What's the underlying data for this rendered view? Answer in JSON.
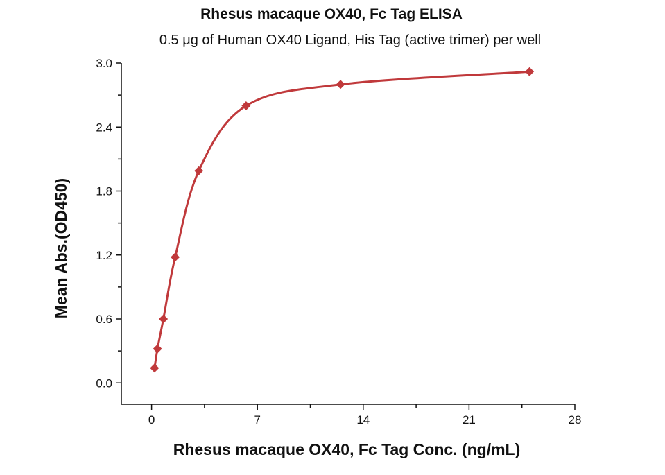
{
  "colors": {
    "series": "#c0393b",
    "axis": "#111111"
  },
  "chart_data": {
    "type": "scatter",
    "title": "Rhesus macaque OX40, Fc Tag ELISA",
    "subtitle": "0.5 μg of Human OX40 Ligand, His Tag (active trimer) per well",
    "xlabel": "Rhesus macaque OX40, Fc Tag Conc. (ng/mL)",
    "ylabel": "Mean Abs.(OD450)",
    "xlim": [
      -2,
      28
    ],
    "ylim": [
      -0.2,
      3.0
    ],
    "xticks": [
      0,
      7,
      14,
      21,
      28
    ],
    "xtick_labels": [
      "0",
      "7",
      "14",
      "21",
      "28"
    ],
    "yticks": [
      0.0,
      0.6,
      1.2,
      1.8,
      2.4,
      3.0
    ],
    "ytick_labels": [
      "0.0",
      "0.6",
      "1.2",
      "1.8",
      "2.4",
      "3.0"
    ],
    "grid": false,
    "legend": "none",
    "series": [
      {
        "marker": "diamond",
        "fit": "four-parameter logistic curve",
        "x": [
          0.195,
          0.39,
          0.78,
          1.56,
          3.125,
          6.25,
          12.5,
          25
        ],
        "y": [
          0.14,
          0.32,
          0.6,
          1.18,
          1.99,
          2.6,
          2.8,
          2.92
        ]
      }
    ]
  }
}
